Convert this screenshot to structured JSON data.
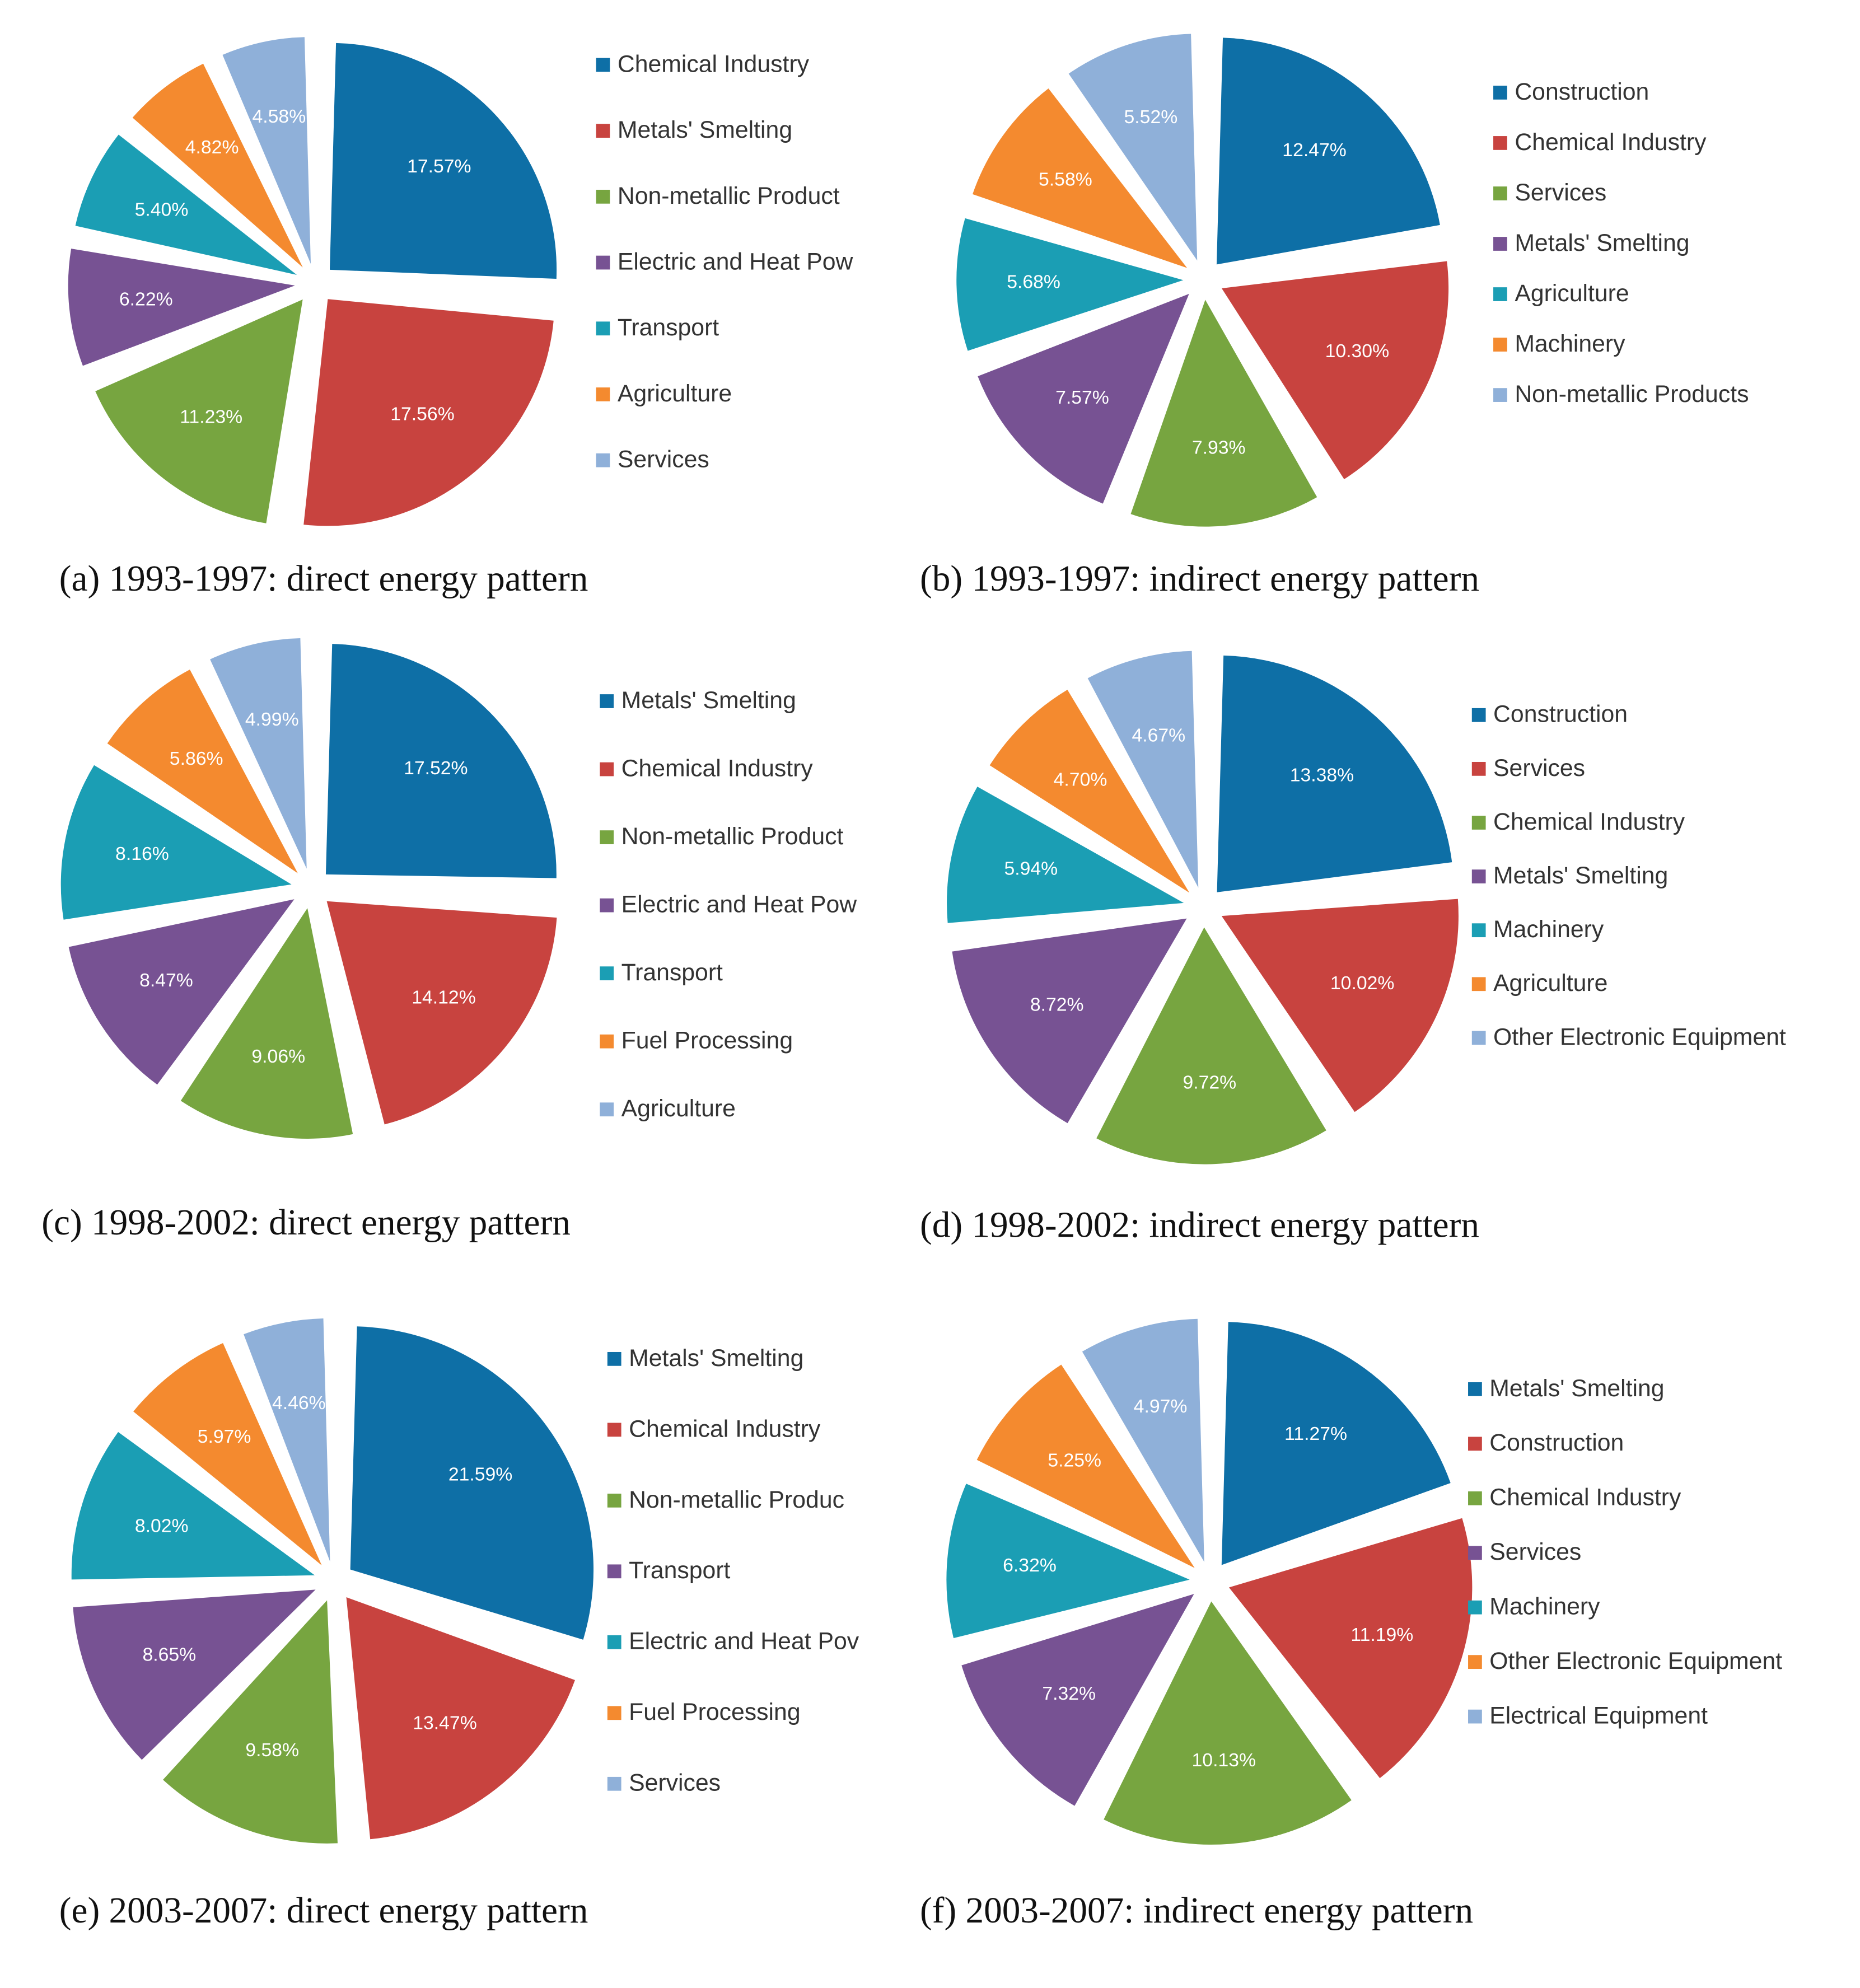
{
  "colors": [
    "#0e6fa6",
    "#c8433f",
    "#77a540",
    "#775293",
    "#1b9eb4",
    "#f48a2f",
    "#8fb0d9"
  ],
  "chart_data": [
    {
      "type": "pie",
      "caption": "(a) 1993-1997: direct energy pattern",
      "labels": [
        "Chemical Industry",
        "Metals' Smelting",
        "Non-metallic Product",
        "Electric and Heat Pow",
        "Transport",
        "Agriculture",
        "Services"
      ],
      "values": [
        17.57,
        17.56,
        11.23,
        6.22,
        5.4,
        4.82,
        4.58
      ],
      "value_labels": [
        "17.57%",
        "17.56%",
        "11.23%",
        "6.22%",
        "5.40%",
        "4.82%",
        "4.58%"
      ]
    },
    {
      "type": "pie",
      "caption": "(b) 1993-1997: indirect energy pattern",
      "labels": [
        "Construction",
        "Chemical Industry",
        "Services",
        "Metals' Smelting",
        "Agriculture",
        "Machinery",
        "Non-metallic Products"
      ],
      "values": [
        12.47,
        10.3,
        7.93,
        7.57,
        5.68,
        5.58,
        5.52
      ],
      "value_labels": [
        "12.47%",
        "10.30%",
        "7.93%",
        "7.57%",
        "5.68%",
        "5.58%",
        "5.52%"
      ]
    },
    {
      "type": "pie",
      "caption": "(c) 1998-2002: direct energy pattern",
      "labels": [
        "Metals' Smelting",
        "Chemical Industry",
        "Non-metallic Product",
        "Electric and Heat Pow",
        "Transport",
        "Fuel Processing",
        "Agriculture"
      ],
      "values": [
        17.52,
        14.12,
        9.06,
        8.47,
        8.16,
        5.86,
        4.99
      ],
      "value_labels": [
        "17.52%",
        "14.12%",
        "9.06%",
        "8.47%",
        "8.16%",
        "5.86%",
        "4.99%"
      ]
    },
    {
      "type": "pie",
      "caption": "(d) 1998-2002: indirect energy pattern",
      "labels": [
        "Construction",
        "Services",
        "Chemical Industry",
        "Metals' Smelting",
        "Machinery",
        "Agriculture",
        "Other Electronic Equipment"
      ],
      "values": [
        13.38,
        10.02,
        9.72,
        8.72,
        5.94,
        4.7,
        4.67
      ],
      "value_labels": [
        "13.38%",
        "10.02%",
        "9.72%",
        "8.72%",
        "5.94%",
        "4.70%",
        "4.67%"
      ]
    },
    {
      "type": "pie",
      "caption": "(e) 2003-2007: direct energy pattern",
      "labels": [
        "Metals' Smelting",
        "Chemical Industry",
        "Non-metallic Produc",
        "Transport",
        "Electric and Heat Pov",
        "Fuel Processing",
        "Services"
      ],
      "values": [
        21.59,
        13.47,
        9.58,
        8.65,
        8.02,
        5.97,
        4.46
      ],
      "value_labels": [
        "21.59%",
        "13.47%",
        "9.58%",
        "8.65%",
        "8.02%",
        "5.97%",
        "4.46%"
      ]
    },
    {
      "type": "pie",
      "caption": "(f) 2003-2007: indirect energy pattern",
      "labels": [
        "Metals' Smelting",
        "Construction",
        "Chemical Industry",
        "Services",
        "Machinery",
        "Other Electronic Equipment",
        "Electrical Equipment"
      ],
      "values": [
        11.27,
        11.19,
        10.13,
        7.32,
        6.32,
        5.25,
        4.97
      ],
      "value_labels": [
        "11.27%",
        "11.19%",
        "10.13%",
        "7.32%",
        "6.32%",
        "5.25%",
        "4.97%"
      ]
    }
  ]
}
